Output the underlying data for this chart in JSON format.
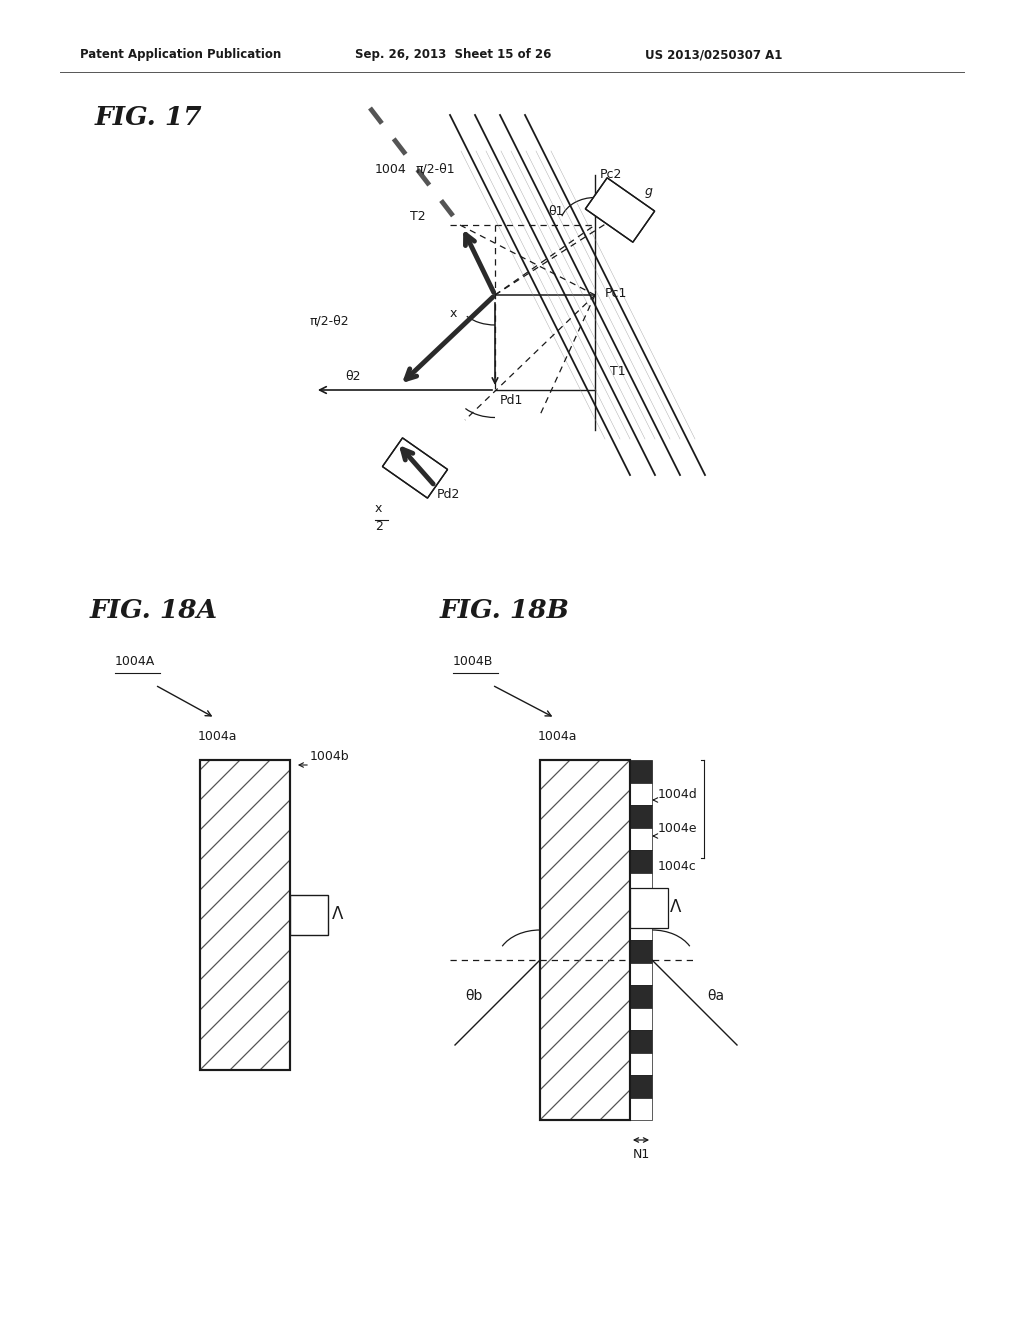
{
  "bg_color": "#ffffff",
  "header_text": "Patent Application Publication",
  "header_date": "Sep. 26, 2013  Sheet 15 of 26",
  "header_patent": "US 2013/0250307 A1",
  "fig17_title": "FIG. 17",
  "fig18a_title": "FIG. 18A",
  "fig18b_title": "FIG. 18B",
  "label_1004": "1004",
  "label_pi2t1": "π/2-θ1",
  "label_theta1": "θ1",
  "label_Pc2": "Pc2",
  "label_g": "g",
  "label_T2": "T2",
  "label_Pc1": "Pc1",
  "label_x": "x",
  "label_pi2t2": "π/2-θ2",
  "label_theta2": "θ2",
  "label_T1": "T1",
  "label_Pd1": "Pd1",
  "label_Pd2": "Pd2",
  "label_x2_top": "x",
  "label_x2_bot": "2",
  "label_1004A": "1004A",
  "label_1004a_18a": "1004a",
  "label_1004b": "1004b",
  "label_Lambda": "Λ",
  "label_1004B": "1004B",
  "label_1004a_18b": "1004a",
  "label_1004d": "1004d",
  "label_1004e": "1004e",
  "label_1004c": "1004c",
  "label_Lambda_b": "Λ",
  "label_theta_b": "θb",
  "label_theta_a": "θa",
  "label_N1": "N1"
}
